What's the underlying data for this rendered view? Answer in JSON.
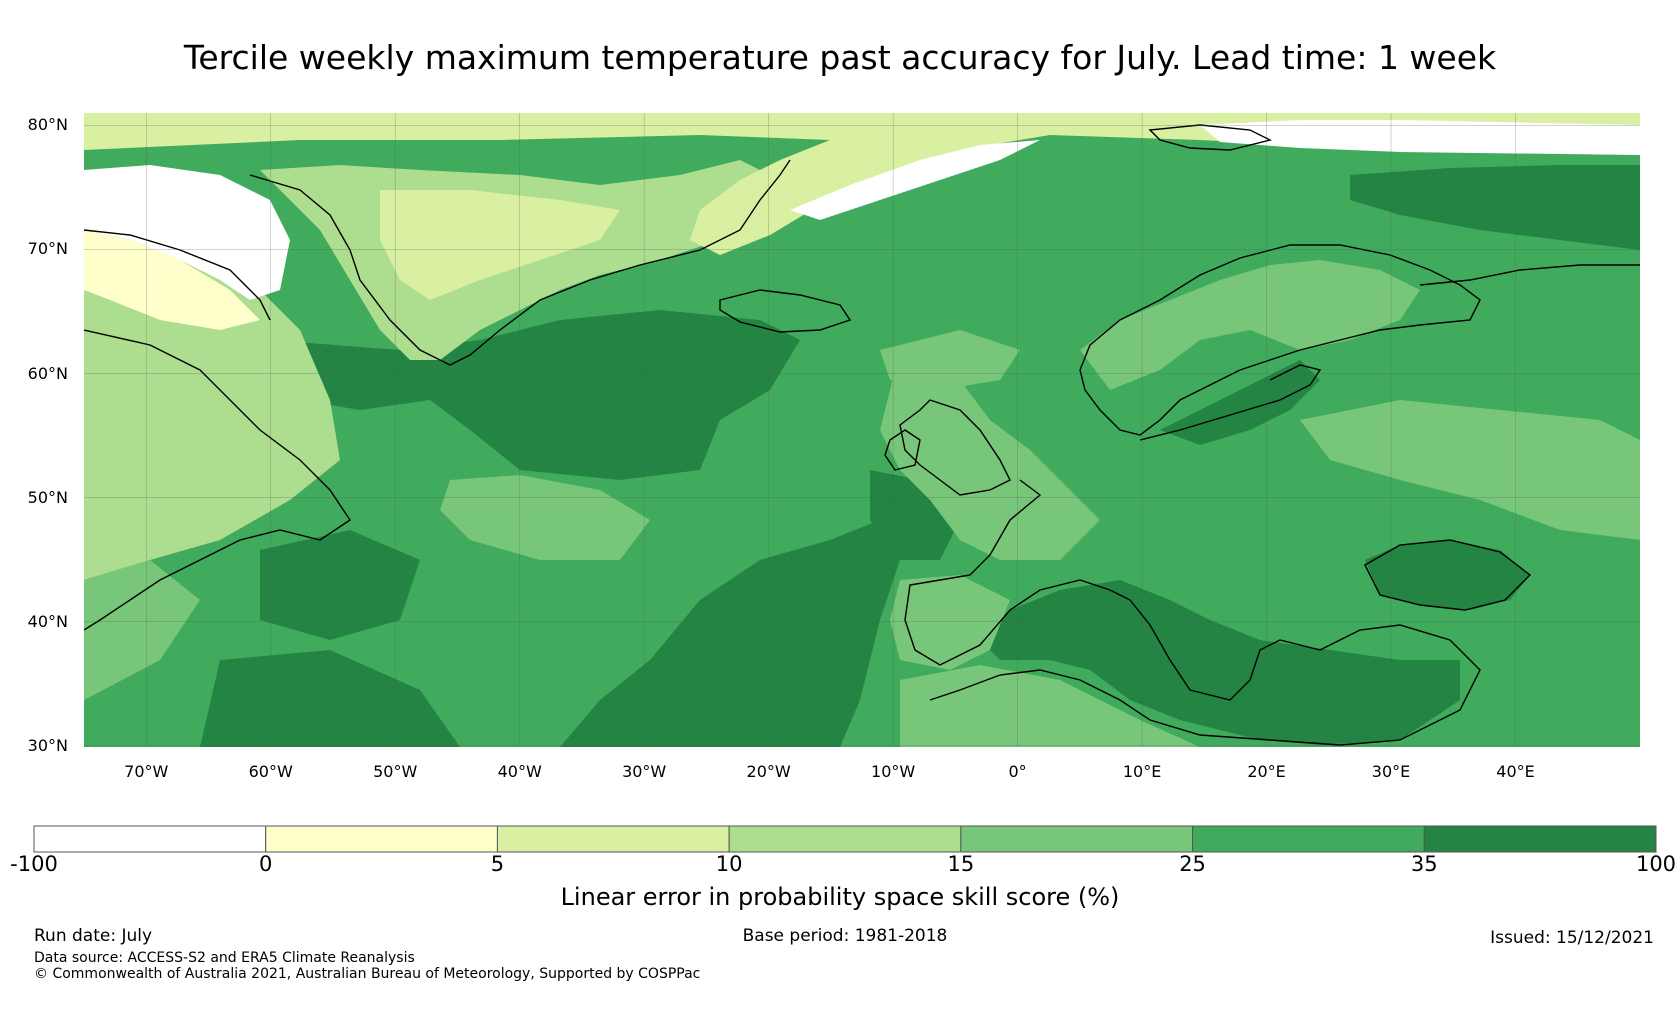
{
  "title": "Tercile weekly maximum temperature past accuracy for July. Lead time: 1 week",
  "map": {
    "lat_labels": [
      "80°N",
      "70°N",
      "60°N",
      "50°N",
      "40°N",
      "30°N"
    ],
    "lon_labels": [
      "70°W",
      "60°W",
      "50°W",
      "40°W",
      "30°W",
      "20°W",
      "10°W",
      "0°",
      "10°E",
      "20°E",
      "30°E",
      "40°E"
    ],
    "lat_values": [
      80,
      70,
      60,
      50,
      40,
      30
    ],
    "lon_values": [
      -70,
      -60,
      -50,
      -40,
      -30,
      -20,
      -10,
      0,
      10,
      20,
      30,
      40
    ],
    "lon_range": [
      -75,
      50
    ],
    "lat_range": [
      29.9,
      81
    ],
    "colors": {
      "skill_neg": "#ffffff",
      "skill_0_5": "#ffffcc",
      "skill_5_10": "#d9f0a3",
      "skill_10_15": "#addd8e",
      "skill_15_25": "#78c679",
      "skill_25_35": "#41ab5d",
      "skill_35_100": "#238443",
      "coastline": "#000000",
      "gridline": "#555555"
    }
  },
  "colorbar": {
    "ticks": [
      "-100",
      "0",
      "5",
      "10",
      "15",
      "25",
      "35",
      "100"
    ],
    "bins": [
      {
        "from": -100,
        "to": 0,
        "color": "#ffffff"
      },
      {
        "from": 0,
        "to": 5,
        "color": "#ffffcc"
      },
      {
        "from": 5,
        "to": 10,
        "color": "#d9f0a3"
      },
      {
        "from": 10,
        "to": 15,
        "color": "#addd8e"
      },
      {
        "from": 15,
        "to": 25,
        "color": "#78c679"
      },
      {
        "from": 25,
        "to": 35,
        "color": "#41ab5d"
      },
      {
        "from": 35,
        "to": 100,
        "color": "#238443"
      }
    ],
    "label": "Linear error in probability space skill score (%)"
  },
  "footer": {
    "run_date": "Run date: July",
    "base_period": "Base period: 1981-2018",
    "issued": "Issued: 15/12/2021",
    "data_source": "Data source: ACCESS-S2 and ERA5 Climate Reanalysis",
    "copyright": "© Commonwealth of Australia 2021, Australian Bureau of Meteorology, Supported by COSPPac"
  }
}
